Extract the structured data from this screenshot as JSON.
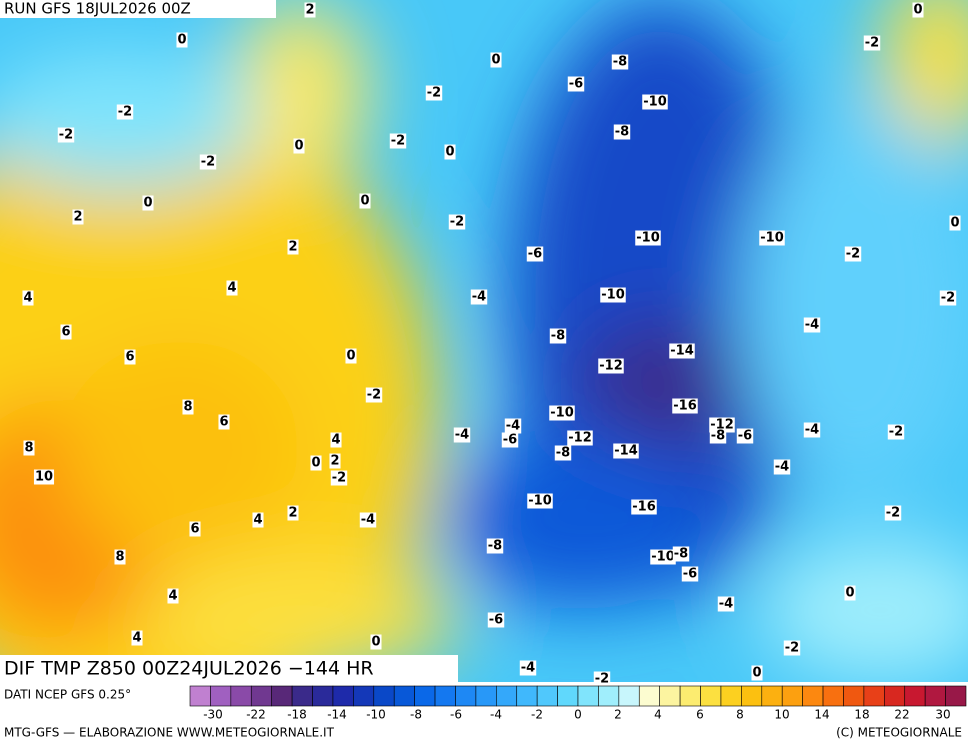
{
  "header": {
    "run": "RUN GFS 18JUL2026 00Z",
    "title": "DIF TMP Z850 00Z24JUL2026 −144 HR",
    "source": "DATI NCEP GFS 0.25°",
    "credit": "MTG-GFS — ELABORAZIONE WWW.METEOGIORNALE.IT",
    "copyright": "(C) METEOGIORNALE"
  },
  "map": {
    "contour_labels": [
      "2",
      "0",
      "0",
      "0",
      "-8",
      "-2",
      "-6",
      "-2",
      "-10",
      "-2",
      "-2",
      "-8",
      "-2",
      "0",
      "0",
      "-2",
      "0",
      "0",
      "2",
      "-2",
      "0",
      "-10",
      "-10",
      "2",
      "-6",
      "-2",
      "4",
      "4",
      "-4",
      "-10",
      "-2",
      "-4",
      "6",
      "-8",
      "-14",
      "6",
      "0",
      "-12",
      "-2",
      "8",
      "-16",
      "-10",
      "6",
      "-12",
      "-4",
      "-4",
      "4",
      "-8",
      "-6",
      "-12",
      "-6",
      "-4",
      "-2",
      "8",
      "-8",
      "-14",
      "0",
      "2",
      "-4",
      "10",
      "-2",
      "-10",
      "-16",
      "2",
      "4",
      "-4",
      "-2",
      "6",
      "-8",
      "-10",
      "-8",
      "8",
      "-6",
      "4",
      "0",
      "-4",
      "-6",
      "4",
      "0",
      "-2",
      "-4",
      "0",
      "-2"
    ]
  },
  "colorbar": {
    "colors": [
      "#c080d0",
      "#a060c0",
      "#8a4aa8",
      "#703890",
      "#582878",
      "#3a2a8a",
      "#2a2a9a",
      "#1e2aaa",
      "#1438b8",
      "#0a48c8",
      "#0858d8",
      "#0a68e8",
      "#1478f0",
      "#1e88f4",
      "#2898f8",
      "#34a8fa",
      "#40b8fc",
      "#50c8fc",
      "#60d8fc",
      "#80e4fc",
      "#a0eefc",
      "#c8f6fc",
      "#fcfcd0",
      "#fcf4a0",
      "#fcec70",
      "#fce040",
      "#fcd020",
      "#fcc010",
      "#fcb010",
      "#fca010",
      "#fc8810",
      "#f87010",
      "#f05810",
      "#e84018",
      "#d82820",
      "#c81830",
      "#b01840",
      "#981848"
    ],
    "ticks": [
      -30,
      -22,
      -18,
      -14,
      -10,
      -8,
      -6,
      -4,
      -2,
      0,
      2,
      4,
      6,
      8,
      10,
      14,
      18,
      22,
      30
    ]
  }
}
